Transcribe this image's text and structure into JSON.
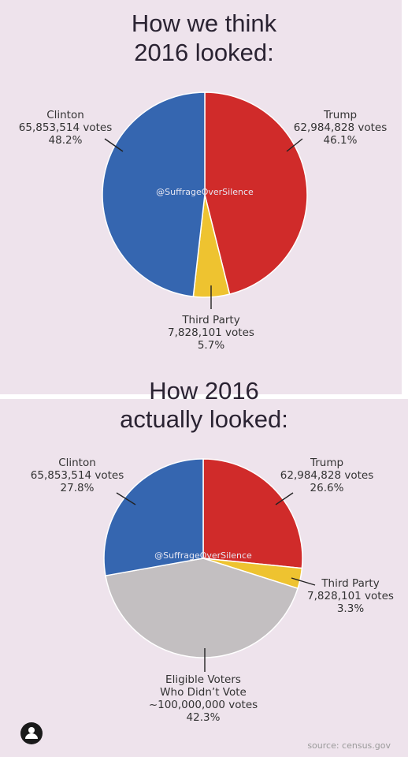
{
  "watermark": "@SuffrageOverSilence",
  "source": "source: census.gov",
  "chart_data": [
    {
      "type": "pie",
      "title_lines": [
        "How we think",
        "2016 looked:"
      ],
      "slices": [
        {
          "name": "Trump",
          "votes": "62,984,828 votes",
          "value": 46.1,
          "pct": "46.1%",
          "color": "#d02b2a"
        },
        {
          "name": "Third Party",
          "votes": "7,828,101 votes",
          "value": 5.7,
          "pct": "5.7%",
          "color": "#eec330"
        },
        {
          "name": "Clinton",
          "votes": "65,853,514 votes",
          "value": 48.2,
          "pct": "48.2%",
          "color": "#3566b0"
        }
      ]
    },
    {
      "type": "pie",
      "title_lines": [
        "How 2016",
        "actually looked:"
      ],
      "slices": [
        {
          "name": "Trump",
          "votes": "62,984,828 votes",
          "value": 26.6,
          "pct": "26.6%",
          "color": "#d02b2a"
        },
        {
          "name": "Third Party",
          "votes": "7,828,101 votes",
          "value": 3.3,
          "pct": "3.3%",
          "color": "#eec330"
        },
        {
          "name_lines": [
            "Eligible Voters",
            "Who Didn’t Vote"
          ],
          "votes": "~100,000,000 votes",
          "value": 42.3,
          "pct": "42.3%",
          "color": "#c3bfc1"
        },
        {
          "name": "Clinton",
          "votes": "65,853,514 votes",
          "value": 27.8,
          "pct": "27.8%",
          "color": "#3566b0"
        }
      ]
    }
  ]
}
